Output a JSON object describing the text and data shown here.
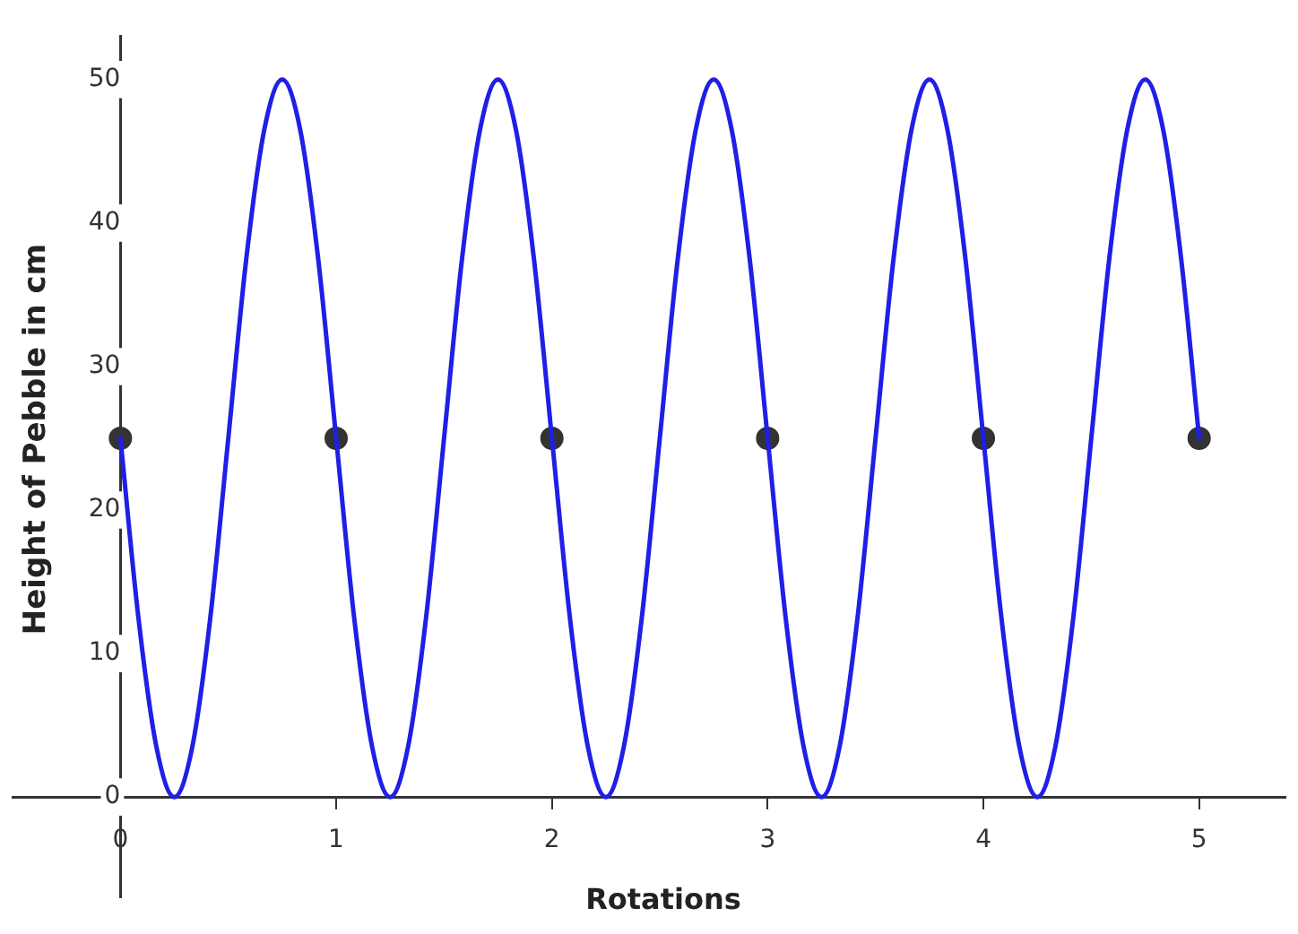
{
  "chart_data": {
    "type": "line",
    "xlabel": "Rotations",
    "ylabel": "Height of Pebble in cm",
    "xlim": [
      -0.5,
      5.4
    ],
    "ylim": [
      -7,
      53
    ],
    "xticks": [
      0,
      1,
      2,
      3,
      4,
      5
    ],
    "yticks": [
      0,
      10,
      20,
      30,
      40,
      50
    ],
    "grid": false,
    "legend": false,
    "series": [
      {
        "color": "#1f1fe6",
        "marker": "none",
        "x": [
          0,
          0.0833,
          0.1667,
          0.25,
          0.3333,
          0.4167,
          0.5,
          0.5833,
          0.6667,
          0.75,
          0.8333,
          0.9167,
          1,
          1.0833,
          1.1667,
          1.25,
          1.3333,
          1.4167,
          1.5,
          1.5833,
          1.6667,
          1.75,
          1.8333,
          1.9167,
          2,
          2.0833,
          2.1667,
          2.25,
          2.3333,
          2.4167,
          2.5,
          2.5833,
          2.6667,
          2.75,
          2.8333,
          2.9167,
          3,
          3.0833,
          3.1667,
          3.25,
          3.3333,
          3.4167,
          3.5,
          3.5833,
          3.6667,
          3.75,
          3.8333,
          3.9167,
          4,
          4.0833,
          4.1667,
          4.25,
          4.3333,
          4.4167,
          4.5,
          4.5833,
          4.6667,
          4.75,
          4.8333,
          4.9167,
          5
        ],
        "values": [
          25,
          12.5,
          3.5,
          0,
          3.5,
          12.5,
          25,
          37.5,
          46.5,
          50,
          46.5,
          37.5,
          25,
          12.5,
          3.5,
          0,
          3.5,
          12.5,
          25,
          37.5,
          46.5,
          50,
          46.5,
          37.5,
          25,
          12.5,
          3.5,
          0,
          3.5,
          12.5,
          25,
          37.5,
          46.5,
          50,
          46.5,
          37.5,
          25,
          12.5,
          3.5,
          0,
          3.5,
          12.5,
          25,
          37.5,
          46.5,
          50,
          46.5,
          37.5,
          25,
          12.5,
          3.5,
          0,
          3.5,
          12.5,
          25,
          37.5,
          46.5,
          50,
          46.5,
          37.5,
          25
        ]
      },
      {
        "type": "scatter",
        "color": "#333333",
        "marker": "circle",
        "x": [
          0,
          1,
          2,
          3,
          4,
          5
        ],
        "values": [
          25,
          25,
          25,
          25,
          25,
          25
        ]
      }
    ]
  }
}
